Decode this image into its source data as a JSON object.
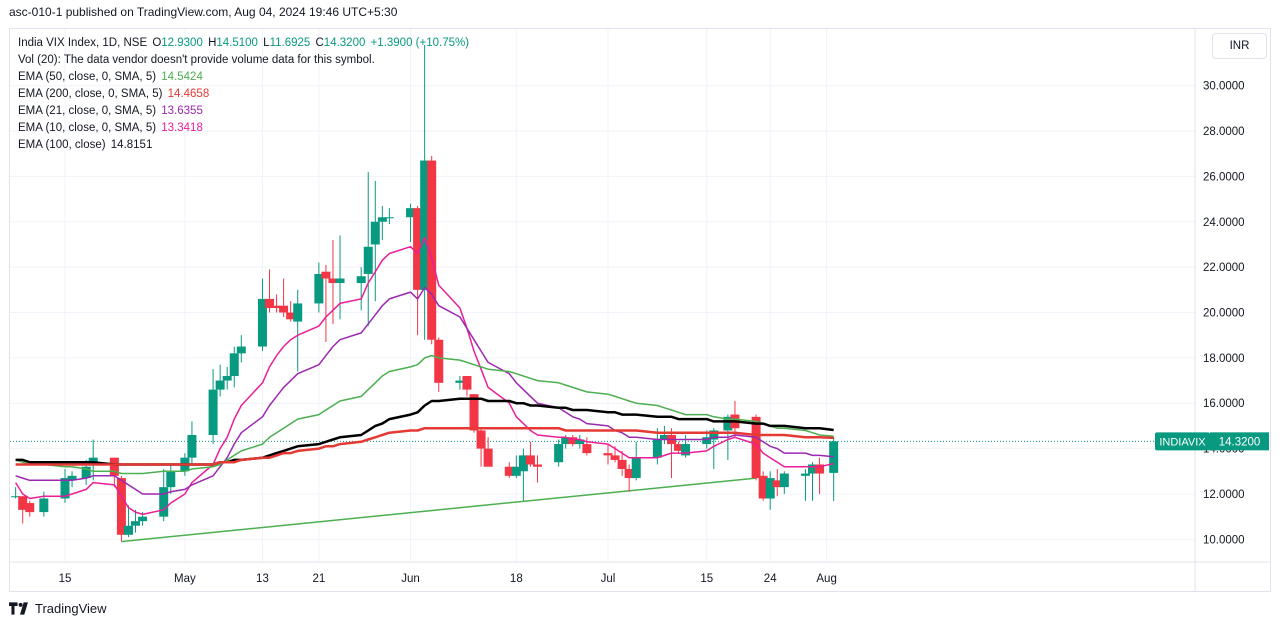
{
  "caption": "asc-010-1 published on TradingView.com, Aug 04, 2024 19:46 UTC+5:30",
  "legend": {
    "title": "India VIX Index, 1D, NSE",
    "o_label": "O",
    "o_val": "12.9300",
    "h_label": "H",
    "h_val": "14.5100",
    "l_label": "L",
    "l_val": "11.6925",
    "c_label": "C",
    "c_val": "14.3200",
    "change": "+1.3900 (+10.75%)",
    "vol_line": "Vol (20): The data vendor doesn't provide volume data for this symbol.",
    "indicators": [
      {
        "label": "EMA (50, close, 0, SMA, 5)",
        "value": "14.5424",
        "color": "#4caf50"
      },
      {
        "label": "EMA (200, close, 0, SMA, 5)",
        "value": "14.4658",
        "color": "#e53935"
      },
      {
        "label": "EMA (21, close, 0, SMA, 5)",
        "value": "13.6355",
        "color": "#9c27b0"
      },
      {
        "label": "EMA (10, close, 0, SMA, 5)",
        "value": "13.3418",
        "color": "#e91e98"
      },
      {
        "label": "EMA (100, close)",
        "value": "14.8151",
        "color": "#131722"
      }
    ]
  },
  "currency": "INR",
  "brand": "TradingView",
  "price_label": {
    "symbol": "INDIAVIX",
    "value": "14.3200",
    "color": "#089981"
  },
  "chart_data": {
    "type": "candlestick",
    "symbol": "India VIX Index",
    "interval": "1D",
    "exchange": "NSE",
    "ylim": [
      9.0,
      32.5
    ],
    "yticks": [
      10,
      12,
      14,
      16,
      18,
      20,
      22,
      24,
      26,
      28,
      30
    ],
    "ytick_labels": [
      "10.0000",
      "12.0000",
      "14.0000",
      "16.0000",
      "18.0000",
      "20.0000",
      "22.0000",
      "24.0000",
      "26.0000",
      "28.0000",
      "30.0000"
    ],
    "x_labels": [
      {
        "label": "15",
        "date": "2024-04-15"
      },
      {
        "label": "May",
        "date": "2024-05-02"
      },
      {
        "label": "13",
        "date": "2024-05-13"
      },
      {
        "label": "21",
        "date": "2024-05-21"
      },
      {
        "label": "Jun",
        "date": "2024-06-03"
      },
      {
        "label": "18",
        "date": "2024-06-18"
      },
      {
        "label": "Jul",
        "date": "2024-07-01"
      },
      {
        "label": "15",
        "date": "2024-07-15"
      },
      {
        "label": "24",
        "date": "2024-07-24"
      },
      {
        "label": "Aug",
        "date": "2024-08-01"
      }
    ],
    "candles": [
      {
        "d": "2024-04-08",
        "o": 11.9,
        "h": 12.3,
        "l": 11.8,
        "c": 11.9
      },
      {
        "d": "2024-04-09",
        "o": 11.9,
        "h": 11.9,
        "l": 10.7,
        "c": 11.3
      },
      {
        "d": "2024-04-10",
        "o": 11.6,
        "h": 11.7,
        "l": 11.0,
        "c": 11.2
      },
      {
        "d": "2024-04-12",
        "o": 11.2,
        "h": 12.1,
        "l": 11.0,
        "c": 11.8
      },
      {
        "d": "2024-04-15",
        "o": 11.8,
        "h": 13.1,
        "l": 11.6,
        "c": 12.7
      },
      {
        "d": "2024-04-16",
        "o": 12.6,
        "h": 13.0,
        "l": 12.3,
        "c": 12.8
      },
      {
        "d": "2024-04-18",
        "o": 12.7,
        "h": 13.5,
        "l": 12.4,
        "c": 13.2
      },
      {
        "d": "2024-04-19",
        "o": 13.3,
        "h": 14.4,
        "l": 12.6,
        "c": 13.6
      },
      {
        "d": "2024-04-22",
        "o": 13.6,
        "h": 13.6,
        "l": 12.3,
        "c": 12.8
      },
      {
        "d": "2024-04-23",
        "o": 12.7,
        "h": 12.8,
        "l": 9.9,
        "c": 10.2
      },
      {
        "d": "2024-04-24",
        "o": 10.2,
        "h": 11.5,
        "l": 10.1,
        "c": 10.6
      },
      {
        "d": "2024-04-25",
        "o": 10.6,
        "h": 11.3,
        "l": 10.3,
        "c": 10.8
      },
      {
        "d": "2024-04-26",
        "o": 10.8,
        "h": 11.2,
        "l": 10.6,
        "c": 11.0
      },
      {
        "d": "2024-04-29",
        "o": 11.0,
        "h": 13.1,
        "l": 10.8,
        "c": 12.3
      },
      {
        "d": "2024-04-30",
        "o": 12.3,
        "h": 13.3,
        "l": 12.0,
        "c": 13.0
      },
      {
        "d": "2024-05-02",
        "o": 13.0,
        "h": 13.8,
        "l": 12.8,
        "c": 13.6
      },
      {
        "d": "2024-05-03",
        "o": 13.6,
        "h": 15.2,
        "l": 13.3,
        "c": 14.6
      },
      {
        "d": "2024-05-06",
        "o": 14.6,
        "h": 17.5,
        "l": 14.2,
        "c": 16.6
      },
      {
        "d": "2024-05-07",
        "o": 16.6,
        "h": 17.7,
        "l": 16.3,
        "c": 17.0
      },
      {
        "d": "2024-05-08",
        "o": 17.0,
        "h": 17.6,
        "l": 16.6,
        "c": 17.2
      },
      {
        "d": "2024-05-09",
        "o": 17.2,
        "h": 18.5,
        "l": 16.7,
        "c": 18.2
      },
      {
        "d": "2024-05-10",
        "o": 18.2,
        "h": 19.0,
        "l": 17.8,
        "c": 18.5
      },
      {
        "d": "2024-05-13",
        "o": 18.5,
        "h": 21.5,
        "l": 18.3,
        "c": 20.6
      },
      {
        "d": "2024-05-14",
        "o": 20.6,
        "h": 21.9,
        "l": 20.0,
        "c": 20.2
      },
      {
        "d": "2024-05-15",
        "o": 20.3,
        "h": 20.8,
        "l": 20.0,
        "c": 20.2
      },
      {
        "d": "2024-05-16",
        "o": 20.3,
        "h": 21.5,
        "l": 19.8,
        "c": 20.0
      },
      {
        "d": "2024-05-17",
        "o": 20.0,
        "h": 20.5,
        "l": 19.6,
        "c": 19.7
      },
      {
        "d": "2024-05-18",
        "o": 19.6,
        "h": 21.0,
        "l": 17.4,
        "c": 20.4
      },
      {
        "d": "2024-05-21",
        "o": 20.4,
        "h": 22.2,
        "l": 20.0,
        "c": 21.7
      },
      {
        "d": "2024-05-22",
        "o": 21.8,
        "h": 22.1,
        "l": 18.7,
        "c": 21.5
      },
      {
        "d": "2024-05-23",
        "o": 21.5,
        "h": 23.2,
        "l": 19.5,
        "c": 21.3
      },
      {
        "d": "2024-05-24",
        "o": 21.3,
        "h": 23.4,
        "l": 19.7,
        "c": 21.5
      },
      {
        "d": "2024-05-27",
        "o": 21.3,
        "h": 22.0,
        "l": 20.1,
        "c": 21.6
      },
      {
        "d": "2024-05-28",
        "o": 21.7,
        "h": 26.2,
        "l": 19.4,
        "c": 22.9
      },
      {
        "d": "2024-05-29",
        "o": 23.0,
        "h": 25.8,
        "l": 20.5,
        "c": 24.0
      },
      {
        "d": "2024-05-30",
        "o": 24.0,
        "h": 24.7,
        "l": 23.2,
        "c": 24.2
      },
      {
        "d": "2024-05-31",
        "o": 24.2,
        "h": 24.6,
        "l": 23.9,
        "c": 24.2
      },
      {
        "d": "2024-06-03",
        "o": 24.2,
        "h": 24.8,
        "l": 23.1,
        "c": 24.6
      },
      {
        "d": "2024-06-04",
        "o": 24.6,
        "h": 24.7,
        "l": 19.0,
        "c": 21.0
      },
      {
        "d": "2024-06-05",
        "o": 21.0,
        "h": 31.8,
        "l": 18.8,
        "c": 26.7
      },
      {
        "d": "2024-06-06",
        "o": 26.7,
        "h": 26.9,
        "l": 18.6,
        "c": 18.8
      },
      {
        "d": "2024-06-07",
        "o": 18.8,
        "h": 18.9,
        "l": 16.5,
        "c": 16.9
      },
      {
        "d": "2024-06-10",
        "o": 16.9,
        "h": 17.2,
        "l": 16.6,
        "c": 17.0
      },
      {
        "d": "2024-06-11",
        "o": 17.2,
        "h": 17.2,
        "l": 16.3,
        "c": 16.6
      },
      {
        "d": "2024-06-12",
        "o": 16.4,
        "h": 16.4,
        "l": 14.7,
        "c": 14.8
      },
      {
        "d": "2024-06-13",
        "o": 14.8,
        "h": 14.9,
        "l": 13.2,
        "c": 14.0
      },
      {
        "d": "2024-06-14",
        "o": 14.0,
        "h": 14.5,
        "l": 13.3,
        "c": 13.2
      },
      {
        "d": "2024-06-17",
        "o": 13.2,
        "h": 13.4,
        "l": 12.7,
        "c": 12.8
      },
      {
        "d": "2024-06-18",
        "o": 12.8,
        "h": 13.7,
        "l": 12.7,
        "c": 13.2
      },
      {
        "d": "2024-06-19",
        "o": 13.0,
        "h": 14.0,
        "l": 11.7,
        "c": 13.7
      },
      {
        "d": "2024-06-20",
        "o": 13.7,
        "h": 14.3,
        "l": 13.2,
        "c": 13.3
      },
      {
        "d": "2024-06-21",
        "o": 13.3,
        "h": 13.7,
        "l": 12.5,
        "c": 13.2
      },
      {
        "d": "2024-06-24",
        "o": 13.4,
        "h": 14.4,
        "l": 13.2,
        "c": 14.2
      },
      {
        "d": "2024-06-25",
        "o": 14.2,
        "h": 14.6,
        "l": 14.0,
        "c": 14.5
      },
      {
        "d": "2024-06-26",
        "o": 14.5,
        "h": 14.6,
        "l": 14.1,
        "c": 14.2
      },
      {
        "d": "2024-06-27",
        "o": 14.2,
        "h": 14.6,
        "l": 14.0,
        "c": 14.4
      },
      {
        "d": "2024-06-28",
        "o": 14.2,
        "h": 14.5,
        "l": 13.7,
        "c": 13.8
      },
      {
        "d": "2024-07-01",
        "o": 13.8,
        "h": 14.2,
        "l": 13.3,
        "c": 13.7
      },
      {
        "d": "2024-07-02",
        "o": 13.7,
        "h": 14.1,
        "l": 13.4,
        "c": 13.5
      },
      {
        "d": "2024-07-03",
        "o": 13.5,
        "h": 13.9,
        "l": 12.8,
        "c": 13.1
      },
      {
        "d": "2024-07-04",
        "o": 13.1,
        "h": 13.3,
        "l": 12.1,
        "c": 12.7
      },
      {
        "d": "2024-07-05",
        "o": 12.7,
        "h": 14.3,
        "l": 12.6,
        "c": 13.6
      },
      {
        "d": "2024-07-08",
        "o": 13.6,
        "h": 14.9,
        "l": 13.3,
        "c": 14.4
      },
      {
        "d": "2024-07-09",
        "o": 14.4,
        "h": 15.0,
        "l": 14.2,
        "c": 14.6
      },
      {
        "d": "2024-07-10",
        "o": 14.6,
        "h": 14.9,
        "l": 12.7,
        "c": 14.2
      },
      {
        "d": "2024-07-11",
        "o": 14.2,
        "h": 14.3,
        "l": 13.8,
        "c": 13.9
      },
      {
        "d": "2024-07-12",
        "o": 13.7,
        "h": 14.6,
        "l": 13.6,
        "c": 14.2
      },
      {
        "d": "2024-07-15",
        "o": 14.2,
        "h": 14.8,
        "l": 14.0,
        "c": 14.5
      },
      {
        "d": "2024-07-16",
        "o": 14.4,
        "h": 14.9,
        "l": 13.1,
        "c": 14.8
      },
      {
        "d": "2024-07-18",
        "o": 14.8,
        "h": 15.5,
        "l": 13.5,
        "c": 15.4
      },
      {
        "d": "2024-07-19",
        "o": 15.5,
        "h": 16.1,
        "l": 14.5,
        "c": 14.9
      },
      {
        "d": "2024-07-22",
        "o": 15.4,
        "h": 15.5,
        "l": 12.6,
        "c": 12.7
      },
      {
        "d": "2024-07-23",
        "o": 12.8,
        "h": 13.0,
        "l": 11.7,
        "c": 11.8
      },
      {
        "d": "2024-07-24",
        "o": 11.8,
        "h": 13.0,
        "l": 11.3,
        "c": 12.7
      },
      {
        "d": "2024-07-25",
        "o": 12.6,
        "h": 13.1,
        "l": 11.9,
        "c": 12.3
      },
      {
        "d": "2024-07-26",
        "o": 12.3,
        "h": 13.0,
        "l": 12.0,
        "c": 12.9
      },
      {
        "d": "2024-07-29",
        "o": 12.8,
        "h": 13.1,
        "l": 11.7,
        "c": 12.9
      },
      {
        "d": "2024-07-30",
        "o": 12.9,
        "h": 13.4,
        "l": 11.7,
        "c": 13.3
      },
      {
        "d": "2024-07-31",
        "o": 13.3,
        "h": 13.6,
        "l": 12.0,
        "c": 12.9
      },
      {
        "d": "2024-08-02",
        "o": 12.93,
        "h": 14.51,
        "l": 11.6925,
        "c": 14.32
      }
    ],
    "ema_lines": [
      {
        "label": "EMA (10, close, 0, SMA, 5)",
        "color": "#e91e98",
        "values": [
          12.5,
          12.0,
          11.8,
          11.9,
          11.9,
          12.0,
          12.2,
          12.5,
          12.4,
          11.9,
          11.4,
          11.2,
          11.1,
          11.3,
          11.6,
          12.0,
          12.5,
          13.3,
          14.0,
          14.5,
          15.3,
          15.9,
          16.9,
          17.6,
          18.1,
          18.5,
          18.8,
          19.0,
          19.4,
          19.8,
          20.1,
          20.4,
          20.6,
          21.3,
          21.8,
          22.3,
          22.6,
          22.9,
          22.6,
          23.3,
          22.4,
          21.2,
          20.2,
          19.3,
          18.3,
          17.5,
          16.7,
          16.0,
          15.4,
          15.1,
          14.8,
          14.6,
          14.5,
          14.5,
          14.4,
          14.4,
          14.3,
          14.2,
          14.0,
          13.8,
          13.6,
          13.6,
          13.6,
          13.7,
          13.8,
          13.8,
          13.8,
          13.9,
          14.1,
          14.4,
          14.5,
          14.2,
          13.8,
          13.6,
          13.4,
          13.2,
          13.2,
          13.2,
          13.2,
          13.34
        ]
      },
      {
        "label": "EMA (21, close, 0, SMA, 5)",
        "color": "#9c27b0",
        "values": [
          12.8,
          12.7,
          12.6,
          12.6,
          12.6,
          12.6,
          12.7,
          12.8,
          12.8,
          12.6,
          12.4,
          12.2,
          12.0,
          12.0,
          12.1,
          12.2,
          12.4,
          12.8,
          13.2,
          13.6,
          14.2,
          14.7,
          15.4,
          15.9,
          16.3,
          16.7,
          17.0,
          17.3,
          17.7,
          18.1,
          18.5,
          18.8,
          19.1,
          19.5,
          19.9,
          20.3,
          20.6,
          20.9,
          20.6,
          21.1,
          20.8,
          20.3,
          19.8,
          19.3,
          18.8,
          18.3,
          17.8,
          17.3,
          16.9,
          16.6,
          16.3,
          16.0,
          15.8,
          15.6,
          15.4,
          15.3,
          15.1,
          15.0,
          14.8,
          14.7,
          14.5,
          14.5,
          14.4,
          14.4,
          14.4,
          14.4,
          14.4,
          14.4,
          14.5,
          14.5,
          14.6,
          14.5,
          14.3,
          14.1,
          14.0,
          13.8,
          13.8,
          13.7,
          13.7,
          13.64
        ]
      },
      {
        "label": "EMA (50, close, 0, SMA, 5)",
        "color": "#4caf50",
        "values": [
          13.5,
          13.4,
          13.3,
          13.3,
          13.2,
          13.2,
          13.1,
          13.0,
          13.0,
          12.9,
          12.9,
          12.9,
          12.9,
          13.0,
          13.0,
          13.0,
          13.1,
          13.2,
          13.3,
          13.5,
          13.7,
          13.9,
          14.2,
          14.5,
          14.7,
          14.9,
          15.1,
          15.3,
          15.5,
          15.7,
          15.9,
          16.1,
          16.3,
          16.6,
          16.9,
          17.2,
          17.4,
          17.6,
          17.7,
          18.0,
          18.1,
          18.0,
          17.9,
          17.8,
          17.7,
          17.6,
          17.5,
          17.4,
          17.3,
          17.2,
          17.1,
          17.0,
          16.9,
          16.8,
          16.7,
          16.6,
          16.5,
          16.4,
          16.3,
          16.2,
          16.1,
          16.0,
          15.9,
          15.8,
          15.7,
          15.6,
          15.5,
          15.5,
          15.4,
          15.3,
          15.3,
          15.2,
          15.1,
          15.0,
          14.9,
          14.9,
          14.8,
          14.7,
          14.6,
          14.54
        ]
      },
      {
        "label": "EMA (100, close)",
        "color": "#000000",
        "values": [
          13.5,
          13.5,
          13.4,
          13.4,
          13.4,
          13.4,
          13.4,
          13.4,
          13.3,
          13.3,
          13.3,
          13.3,
          13.3,
          13.3,
          13.3,
          13.3,
          13.3,
          13.3,
          13.4,
          13.4,
          13.5,
          13.5,
          13.6,
          13.7,
          13.8,
          13.9,
          14.0,
          14.1,
          14.2,
          14.3,
          14.4,
          14.5,
          14.6,
          14.8,
          15.0,
          15.1,
          15.3,
          15.5,
          15.6,
          15.9,
          16.1,
          16.1,
          16.2,
          16.2,
          16.2,
          16.2,
          16.1,
          16.1,
          16.0,
          16.0,
          15.9,
          15.9,
          15.8,
          15.8,
          15.7,
          15.7,
          15.7,
          15.6,
          15.6,
          15.5,
          15.5,
          15.5,
          15.4,
          15.4,
          15.4,
          15.3,
          15.3,
          15.3,
          15.2,
          15.2,
          15.2,
          15.1,
          15.1,
          15.0,
          15.0,
          15.0,
          14.9,
          14.9,
          14.9,
          14.82
        ]
      },
      {
        "label": "EMA (200, close, 0, SMA, 5)",
        "color": "#e53935",
        "values": [
          13.3,
          13.3,
          13.3,
          13.3,
          13.3,
          13.3,
          13.3,
          13.3,
          13.3,
          13.3,
          13.3,
          13.3,
          13.3,
          13.3,
          13.3,
          13.3,
          13.3,
          13.3,
          13.4,
          13.4,
          13.4,
          13.5,
          13.6,
          13.6,
          13.7,
          13.8,
          13.8,
          13.9,
          14.0,
          14.1,
          14.1,
          14.2,
          14.3,
          14.4,
          14.5,
          14.6,
          14.7,
          14.8,
          14.8,
          14.9,
          14.9,
          14.9,
          14.9,
          14.9,
          14.9,
          14.9,
          14.9,
          14.9,
          14.9,
          14.9,
          14.9,
          14.9,
          14.9,
          14.8,
          14.8,
          14.8,
          14.8,
          14.8,
          14.8,
          14.8,
          14.8,
          14.8,
          14.7,
          14.7,
          14.7,
          14.7,
          14.7,
          14.7,
          14.7,
          14.7,
          14.7,
          14.6,
          14.6,
          14.6,
          14.6,
          14.6,
          14.5,
          14.5,
          14.5,
          14.47
        ]
      }
    ],
    "trendline": {
      "color": "#4caf50",
      "from": {
        "d": "2024-04-23",
        "y": 9.9
      },
      "to": {
        "d": "2024-07-22",
        "y": 12.7
      }
    },
    "last_price_line": 14.32,
    "grid": true,
    "legend_position": "top-left"
  }
}
